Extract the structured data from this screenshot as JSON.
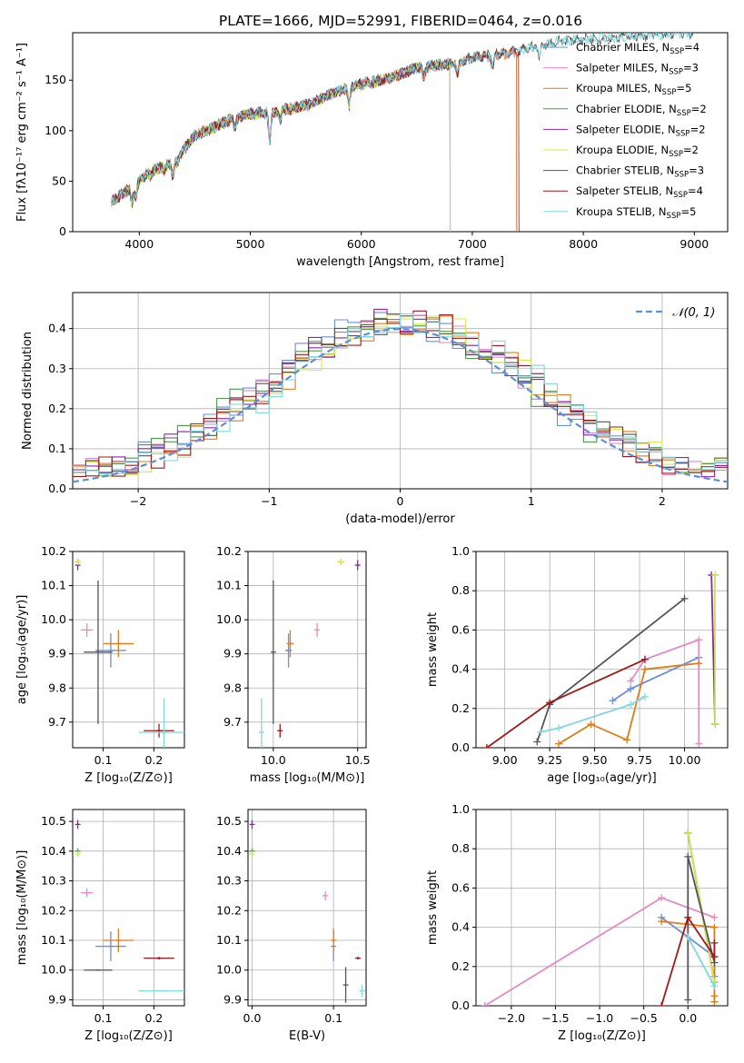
{
  "title": "PLATE=1666, MJD=52991, FIBERID=0464, z=0.016",
  "colors": {
    "Chabrier MILES": "#6a8fd8",
    "Salpeter MILES": "#e58ac4",
    "Kroupa MILES": "#e07b1a",
    "Chabrier ELODIE": "#4f9a4f",
    "Salpeter ELODIE": "#8e24aa",
    "Kroupa ELODIE": "#d4ec4a",
    "Chabrier STELIB": "#555555",
    "Salpeter STELIB": "#a01818",
    "Kroupa STELIB": "#7fd7e0",
    "normal": "#5b8fd6"
  },
  "chart_data": [
    {
      "id": "spectrum",
      "type": "line",
      "title": "PLATE=1666, MJD=52991, FIBERID=0464, z=0.016",
      "xlabel": "wavelength [Angstrom, rest frame]",
      "ylabel": "Flux [fλ10⁻¹⁷ erg cm⁻² s⁻¹ A⁻¹]",
      "xlim": [
        3400,
        9300
      ],
      "ylim": [
        0,
        197
      ],
      "xticks": [
        4000,
        5000,
        6000,
        7000,
        8000,
        9000
      ],
      "yticks": [
        0,
        50,
        100,
        150
      ],
      "legend": "upper right",
      "legend_entries": [
        {
          "base": "Chabrier MILES, N",
          "sub": "SSP",
          "rest": "=4"
        },
        {
          "base": "Salpeter MILES, N",
          "sub": "SSP",
          "rest": "=3"
        },
        {
          "base": "Kroupa MILES, N",
          "sub": "SSP",
          "rest": "=5"
        },
        {
          "base": "Chabrier ELODIE, N",
          "sub": "SSP",
          "rest": "=2"
        },
        {
          "base": "Salpeter ELODIE, N",
          "sub": "SSP",
          "rest": "=2"
        },
        {
          "base": "Kroupa ELODIE, N",
          "sub": "SSP",
          "rest": "=2"
        },
        {
          "base": "Chabrier STELIB, N",
          "sub": "SSP",
          "rest": "=3"
        },
        {
          "base": "Salpeter STELIB, N",
          "sub": "SSP",
          "rest": "=4"
        },
        {
          "base": "Kroupa STELIB, N",
          "sub": "SSP",
          "rest": "=5"
        }
      ],
      "continuum": [
        [
          3750,
          30
        ],
        [
          3950,
          45
        ],
        [
          4100,
          60
        ],
        [
          4300,
          68
        ],
        [
          4500,
          95
        ],
        [
          4800,
          110
        ],
        [
          5000,
          117
        ],
        [
          5200,
          118
        ],
        [
          5500,
          125
        ],
        [
          5800,
          140
        ],
        [
          6000,
          146
        ],
        [
          6200,
          150
        ],
        [
          6500,
          162
        ],
        [
          6800,
          166
        ],
        [
          7000,
          172
        ],
        [
          7200,
          175
        ],
        [
          7400,
          178
        ],
        [
          7600,
          185
        ],
        [
          7900,
          190
        ],
        [
          8200,
          192
        ],
        [
          8600,
          195
        ],
        [
          8900,
          197
        ]
      ],
      "dips": [
        [
          3934,
          -15
        ],
        [
          3968,
          -12
        ],
        [
          4102,
          -6
        ],
        [
          4227,
          -5
        ],
        [
          4304,
          -14
        ],
        [
          4341,
          -6
        ],
        [
          4861,
          -10
        ],
        [
          5175,
          -28
        ],
        [
          5270,
          -8
        ],
        [
          5890,
          -18
        ],
        [
          6563,
          -10
        ],
        [
          6867,
          -14
        ],
        [
          7186,
          -12
        ],
        [
          7605,
          -15
        ]
      ],
      "cutoffs": [
        {
          "model": "Kroupa ELODIE",
          "x": 6800
        },
        {
          "model": "Salpeter ELODIE",
          "x": 6800
        },
        {
          "model": "Chabrier ELODIE",
          "x": 6800
        },
        {
          "model": "Kroupa MILES",
          "x": 7400
        },
        {
          "model": "Salpeter MILES",
          "x": 7400
        },
        {
          "model": "Chabrier MILES",
          "x": 7400
        },
        {
          "model": "Salpeter STELIB",
          "x": 7420
        }
      ]
    },
    {
      "id": "residuals",
      "type": "line",
      "xlabel": "(data-model)/error",
      "ylabel": "Normed distribution",
      "xlim": [
        -2.5,
        2.5
      ],
      "ylim": [
        0,
        0.49
      ],
      "xticks": [
        -2,
        -1,
        0,
        1,
        2
      ],
      "yticks": [
        0.0,
        0.1,
        0.2,
        0.3,
        0.4
      ],
      "legend_label": "𝒩(0, 1)",
      "bin_edges_start": -2.5,
      "bin_width": 0.1
    },
    {
      "id": "age-vs-Z",
      "type": "scatter",
      "xlabel": "Z [log₁₀(Z/Z⊙)]",
      "ylabel": "age  [log₁₀(age/yr)]",
      "xlim": [
        0.04,
        0.26
      ],
      "ylim": [
        9.625,
        10.2
      ],
      "xticks": [
        0.1,
        0.2
      ],
      "yticks": [
        9.7,
        9.8,
        9.9,
        10.0,
        10.1,
        10.2
      ],
      "points": [
        {
          "model": "Chabrier MILES",
          "x": 0.115,
          "y": 9.91,
          "xe": 0.03,
          "ye": 0.05
        },
        {
          "model": "Salpeter MILES",
          "x": 0.068,
          "y": 9.97,
          "xe": 0.012,
          "ye": 0.02
        },
        {
          "model": "Kroupa MILES",
          "x": 0.13,
          "y": 9.93,
          "xe": 0.03,
          "ye": 0.04
        },
        {
          "model": "Chabrier ELODIE",
          "x": 0.05,
          "y": 10.17,
          "xe": 0.002,
          "ye": 0.01
        },
        {
          "model": "Salpeter ELODIE",
          "x": 0.05,
          "y": 10.16,
          "xe": 0.002,
          "ye": 0.015
        },
        {
          "model": "Kroupa ELODIE",
          "x": 0.05,
          "y": 10.17,
          "xe": 0.002,
          "ye": 0.01
        },
        {
          "model": "Chabrier STELIB",
          "x": 0.09,
          "y": 9.905,
          "xe": 0.028,
          "ye": 0.21
        },
        {
          "model": "Salpeter STELIB",
          "x": 0.21,
          "y": 9.675,
          "xe": 0.03,
          "ye": 0.02
        },
        {
          "model": "Kroupa STELIB",
          "x": 0.22,
          "y": 9.67,
          "xe": 0.05,
          "ye": 0.1
        }
      ]
    },
    {
      "id": "age-vs-mass",
      "type": "scatter",
      "xlabel": "mass [log₁₀(M/M⊙)]",
      "ylabel": "",
      "xlim": [
        9.85,
        10.55
      ],
      "ylim": [
        9.625,
        10.2
      ],
      "xticks": [
        10.0,
        10.5
      ],
      "yticks": [
        9.7,
        9.8,
        9.9,
        10.0,
        10.1,
        10.2
      ],
      "points": [
        {
          "model": "Chabrier MILES",
          "x": 10.09,
          "y": 9.91,
          "xe": 0.02,
          "ye": 0.05
        },
        {
          "model": "Salpeter MILES",
          "x": 10.26,
          "y": 9.97,
          "xe": 0.01,
          "ye": 0.02
        },
        {
          "model": "Kroupa MILES",
          "x": 10.1,
          "y": 9.93,
          "xe": 0.02,
          "ye": 0.04
        },
        {
          "model": "Chabrier ELODIE",
          "x": 10.4,
          "y": 10.17,
          "xe": 0.02,
          "ye": 0.01
        },
        {
          "model": "Salpeter ELODIE",
          "x": 10.5,
          "y": 10.16,
          "xe": 0.01,
          "ye": 0.015
        },
        {
          "model": "Kroupa ELODIE",
          "x": 10.4,
          "y": 10.17,
          "xe": 0.02,
          "ye": 0.01
        },
        {
          "model": "Chabrier STELIB",
          "x": 10.0,
          "y": 9.905,
          "xe": 0.0,
          "ye": 0.21
        },
        {
          "model": "Salpeter STELIB",
          "x": 10.04,
          "y": 9.675,
          "xe": 0.005,
          "ye": 0.02
        },
        {
          "model": "Kroupa STELIB",
          "x": 9.93,
          "y": 9.67,
          "xe": 0.0,
          "ye": 0.1
        }
      ]
    },
    {
      "id": "weight-vs-age",
      "type": "line",
      "xlabel": "age  [log₁₀(age/yr)]",
      "ylabel": "mass weight",
      "xlim": [
        8.84,
        10.24
      ],
      "ylim": [
        0,
        1
      ],
      "xticks": [
        9.0,
        9.25,
        9.5,
        9.75,
        10.0
      ],
      "yticks": [
        0.0,
        0.2,
        0.4,
        0.6,
        0.8,
        1.0
      ],
      "series": [
        {
          "model": "Chabrier MILES",
          "x": [
            9.6,
            9.7,
            10.08
          ],
          "y": [
            0.24,
            0.3,
            0.46
          ]
        },
        {
          "model": "Salpeter MILES",
          "x": [
            9.7,
            9.78,
            10.08,
            10.08
          ],
          "y": [
            0.34,
            0.45,
            0.55,
            0.02
          ]
        },
        {
          "model": "Kroupa MILES",
          "x": [
            9.3,
            9.48,
            9.68,
            9.78,
            10.08
          ],
          "y": [
            0.02,
            0.12,
            0.04,
            0.4,
            0.43
          ]
        },
        {
          "model": "Chabrier ELODIE",
          "x": [
            10.17,
            10.17
          ],
          "y": [
            0.88,
            0.12
          ]
        },
        {
          "model": "Salpeter ELODIE",
          "x": [
            10.15,
            10.17
          ],
          "y": [
            0.88,
            0.12
          ]
        },
        {
          "model": "Kroupa ELODIE",
          "x": [
            10.17,
            10.17
          ],
          "y": [
            0.88,
            0.12
          ]
        },
        {
          "model": "Chabrier STELIB",
          "x": [
            9.18,
            9.25,
            10.0
          ],
          "y": [
            0.03,
            0.22,
            0.76
          ]
        },
        {
          "model": "Salpeter STELIB",
          "x": [
            8.9,
            9.25,
            9.78
          ],
          "y": [
            0.0,
            0.23,
            0.45
          ]
        },
        {
          "model": "Kroupa STELIB",
          "x": [
            9.2,
            9.3,
            9.7,
            9.78
          ],
          "y": [
            0.08,
            0.1,
            0.22,
            0.26
          ]
        }
      ]
    },
    {
      "id": "mass-vs-Z",
      "type": "scatter",
      "xlabel": "Z [log₁₀(Z/Z⊙)]",
      "ylabel": "mass [log₁₀(M/M⊙)]",
      "xlim": [
        0.04,
        0.26
      ],
      "ylim": [
        9.88,
        10.54
      ],
      "xticks": [
        0.1,
        0.2
      ],
      "yticks": [
        9.9,
        10.0,
        10.1,
        10.2,
        10.3,
        10.4,
        10.5
      ],
      "points": [
        {
          "model": "Chabrier MILES",
          "x": 0.115,
          "y": 10.08,
          "xe": 0.03,
          "ye": 0.05
        },
        {
          "model": "Salpeter MILES",
          "x": 0.068,
          "y": 10.26,
          "xe": 0.012,
          "ye": 0.015
        },
        {
          "model": "Kroupa MILES",
          "x": 0.13,
          "y": 10.1,
          "xe": 0.03,
          "ye": 0.04
        },
        {
          "model": "Chabrier ELODIE",
          "x": 0.05,
          "y": 10.4,
          "xe": 0.002,
          "ye": 0.01
        },
        {
          "model": "Salpeter ELODIE",
          "x": 0.05,
          "y": 10.49,
          "xe": 0.002,
          "ye": 0.015
        },
        {
          "model": "Kroupa ELODIE",
          "x": 0.05,
          "y": 10.39,
          "xe": 0.002,
          "ye": 0.01
        },
        {
          "model": "Chabrier STELIB",
          "x": 0.09,
          "y": 10.0,
          "xe": 0.028,
          "ye": 0.0
        },
        {
          "model": "Salpeter STELIB",
          "x": 0.21,
          "y": 10.04,
          "xe": 0.03,
          "ye": 0.005
        },
        {
          "model": "Kroupa STELIB",
          "x": 0.22,
          "y": 9.93,
          "xe": 0.05,
          "ye": 0.0
        }
      ]
    },
    {
      "id": "mass-vs-EBV",
      "type": "scatter",
      "xlabel": "E(B-V)",
      "ylabel": "",
      "xlim": [
        -0.005,
        0.14
      ],
      "ylim": [
        9.88,
        10.54
      ],
      "xticks": [
        0.0,
        0.1
      ],
      "yticks": [
        9.9,
        10.0,
        10.1,
        10.2,
        10.3,
        10.4,
        10.5
      ],
      "points": [
        {
          "model": "Chabrier MILES",
          "x": 0.1,
          "y": 10.08,
          "xe": 0,
          "ye": 0.05
        },
        {
          "model": "Salpeter MILES",
          "x": 0.09,
          "y": 10.25,
          "xe": 0,
          "ye": 0.015
        },
        {
          "model": "Kroupa MILES",
          "x": 0.1,
          "y": 10.1,
          "xe": 0,
          "ye": 0.04
        },
        {
          "model": "Chabrier ELODIE",
          "x": 0.0,
          "y": 10.4,
          "xe": 0,
          "ye": 0.01
        },
        {
          "model": "Salpeter ELODIE",
          "x": 0.0,
          "y": 10.49,
          "xe": 0,
          "ye": 0.015
        },
        {
          "model": "Kroupa ELODIE",
          "x": 0.0,
          "y": 10.39,
          "xe": 0,
          "ye": 0.01
        },
        {
          "model": "Chabrier STELIB",
          "x": 0.115,
          "y": 9.95,
          "xe": 0,
          "ye": 0.06
        },
        {
          "model": "Salpeter STELIB",
          "x": 0.13,
          "y": 10.04,
          "xe": 0,
          "ye": 0.005
        },
        {
          "model": "Kroupa STELIB",
          "x": 0.135,
          "y": 9.93,
          "xe": 0,
          "ye": 0.02
        }
      ]
    },
    {
      "id": "weight-vs-Z",
      "type": "line",
      "xlabel": "Z [log₁₀(Z/Z⊙)]",
      "ylabel": "mass weight",
      "xlim": [
        -2.4,
        0.45
      ],
      "ylim": [
        0,
        1
      ],
      "xticks": [
        -2.0,
        -1.5,
        -1.0,
        -0.5,
        0.0
      ],
      "yticks": [
        0.0,
        0.2,
        0.4,
        0.6,
        0.8,
        1.0
      ],
      "series": [
        {
          "model": "Chabrier MILES",
          "x": [
            -0.3,
            0.3,
            0.3
          ],
          "y": [
            0.45,
            0.25,
            0.15
          ]
        },
        {
          "model": "Salpeter MILES",
          "x": [
            -2.3,
            -0.3,
            0.3
          ],
          "y": [
            0.0,
            0.55,
            0.45
          ]
        },
        {
          "model": "Kroupa MILES",
          "x": [
            -0.3,
            0.3,
            0.3,
            0.3
          ],
          "y": [
            0.43,
            0.4,
            0.05,
            0.02
          ]
        },
        {
          "model": "Chabrier ELODIE",
          "x": [
            0.0,
            0.3
          ],
          "y": [
            0.88,
            0.12
          ]
        },
        {
          "model": "Salpeter ELODIE",
          "x": [
            0.0,
            0.3
          ],
          "y": [
            0.88,
            0.12
          ]
        },
        {
          "model": "Kroupa ELODIE",
          "x": [
            0.0,
            0.3
          ],
          "y": [
            0.88,
            0.12
          ]
        },
        {
          "model": "Chabrier STELIB",
          "x": [
            0.0,
            0.0,
            0.3
          ],
          "y": [
            0.03,
            0.76,
            0.22
          ]
        },
        {
          "model": "Salpeter STELIB",
          "x": [
            -0.3,
            0.0,
            0.3,
            0.3
          ],
          "y": [
            0.0,
            0.45,
            0.25,
            0.32
          ]
        },
        {
          "model": "Kroupa STELIB",
          "x": [
            0.0,
            0.3
          ],
          "y": [
            0.35,
            0.1
          ]
        }
      ]
    }
  ]
}
